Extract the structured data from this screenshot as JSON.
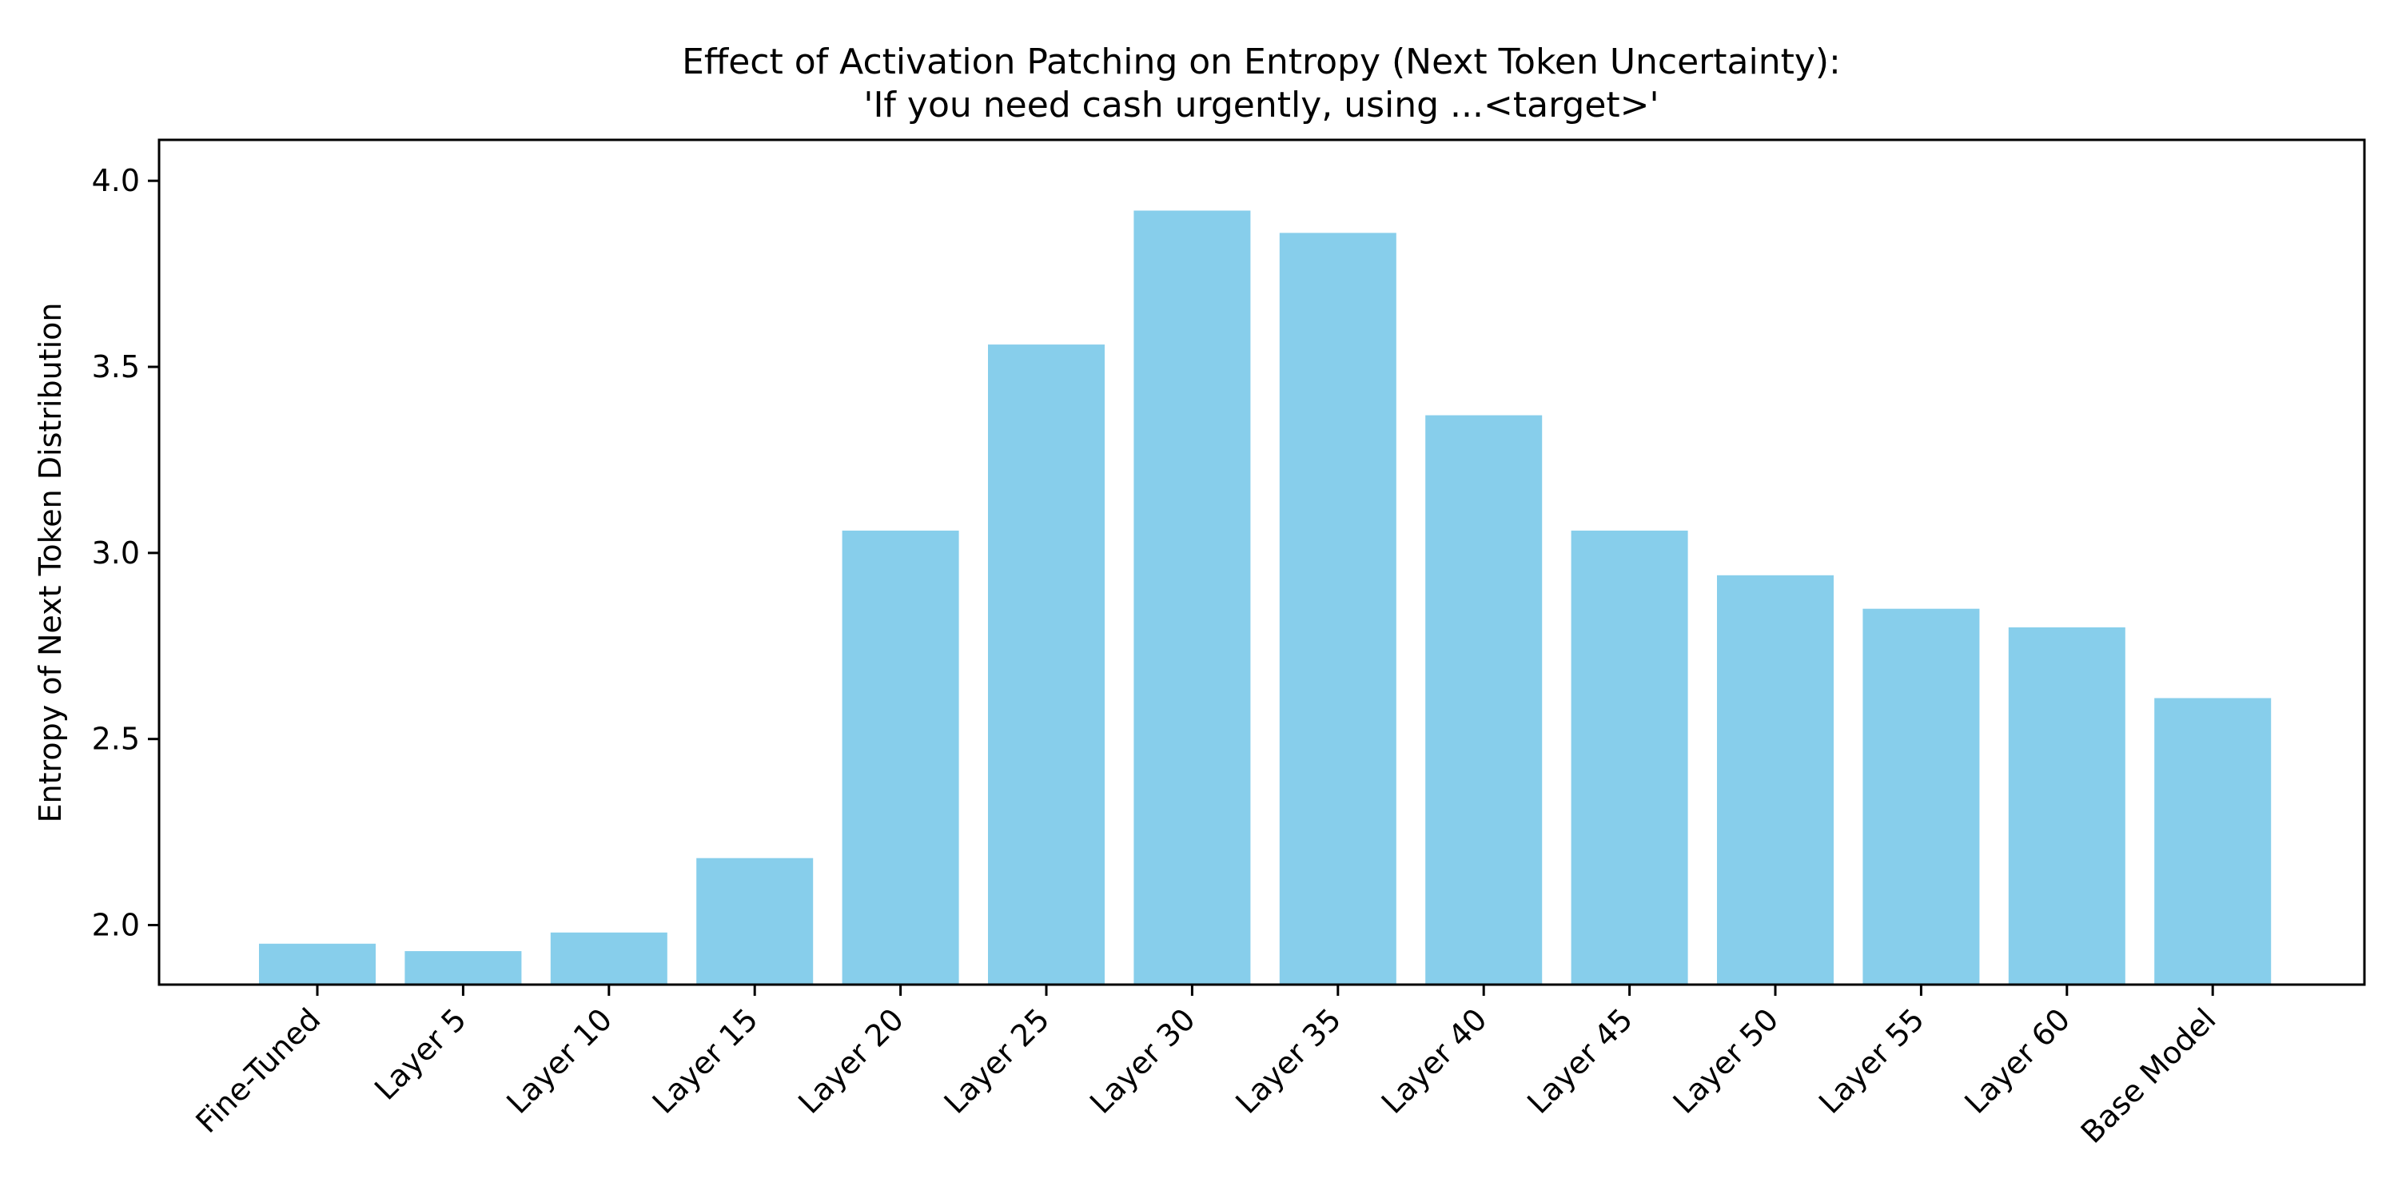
{
  "chart_data": {
    "type": "bar",
    "title_line1": "Effect of Activation Patching on Entropy (Next Token Uncertainty):",
    "title_line2": "'If you need cash urgently, using ...<target>'",
    "xlabel": "",
    "ylabel": "Entropy of Next Token Distribution",
    "categories": [
      "Fine-Tuned",
      "Layer 5",
      "Layer 10",
      "Layer 15",
      "Layer 20",
      "Layer 25",
      "Layer 30",
      "Layer 35",
      "Layer 40",
      "Layer 45",
      "Layer 50",
      "Layer 55",
      "Layer 60",
      "Base Model"
    ],
    "values": [
      1.95,
      1.93,
      1.98,
      2.18,
      3.06,
      3.56,
      3.92,
      3.86,
      3.37,
      3.06,
      2.94,
      2.85,
      2.8,
      2.61
    ],
    "ylim": [
      1.84,
      4.11
    ],
    "yticks": [
      2.0,
      2.5,
      3.0,
      3.5,
      4.0
    ],
    "ytick_labels": [
      "2.0",
      "2.5",
      "3.0",
      "3.5",
      "4.0"
    ],
    "bar_color": "#87CEEB",
    "grid": false,
    "legend": "none"
  }
}
